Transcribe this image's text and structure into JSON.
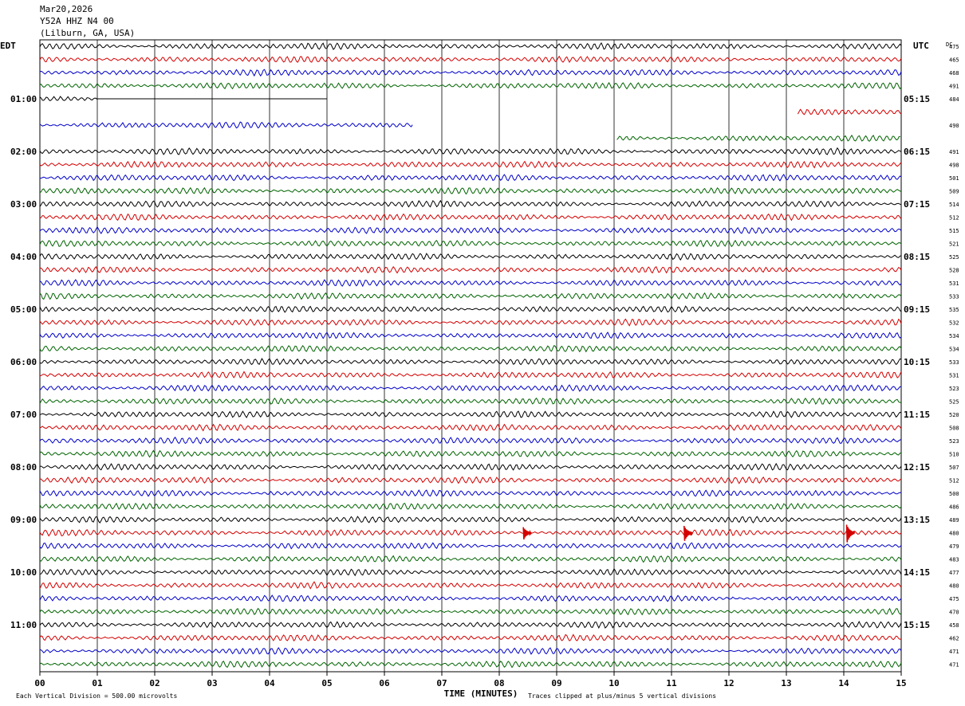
{
  "header": {
    "date": "Mar20,2026",
    "station": "Y52A HHZ N4 00",
    "location": "(Lilburn, GA, USA)"
  },
  "chart_data": {
    "type": "line",
    "title": "",
    "left_axis_title": "EDT",
    "right_axis_title": "UTC",
    "dc_title": "DC",
    "xlabel": "TIME (MINUTES)",
    "x_ticks": [
      "00",
      "01",
      "02",
      "03",
      "04",
      "05",
      "06",
      "07",
      "08",
      "09",
      "10",
      "11",
      "12",
      "13",
      "14",
      "15"
    ],
    "xlim": [
      0,
      15
    ],
    "left_time_labels": [
      "01:00",
      "02:00",
      "03:00",
      "04:00",
      "05:00",
      "06:00",
      "07:00",
      "08:00",
      "09:00",
      "10:00",
      "11:00"
    ],
    "right_time_labels": [
      "05:15",
      "06:15",
      "07:15",
      "08:15",
      "09:15",
      "10:15",
      "11:15",
      "12:15",
      "13:15",
      "14:15",
      "15:15"
    ],
    "rows_per_hour": 4,
    "minutes_per_row": 15,
    "trace_colors": [
      "#000000",
      "#d40000",
      "#0000c8",
      "#006400"
    ],
    "dc_offsets": [
      "475",
      "465",
      "468",
      "491",
      "484",
      "",
      "490",
      "",
      "491",
      "498",
      "501",
      "509",
      "514",
      "512",
      "515",
      "521",
      "525",
      "528",
      "531",
      "533",
      "535",
      "532",
      "534",
      "534",
      "533",
      "531",
      "523",
      "525",
      "520",
      "508",
      "523",
      "510",
      "507",
      "512",
      "500",
      "486",
      "489",
      "480",
      "479",
      "483",
      "477",
      "480",
      "475",
      "470",
      "458",
      "462",
      "471",
      "471"
    ],
    "gaps": [
      {
        "row": 4,
        "start_min": 1.0,
        "end_min": 5.0,
        "type": "flat"
      },
      {
        "row": 4,
        "start_min": 5.0,
        "end_min": 15.0,
        "type": "missing"
      },
      {
        "row": 5,
        "start_min": 0.0,
        "end_min": 13.2,
        "type": "missing"
      },
      {
        "row": 6,
        "start_min": 6.5,
        "end_min": 15.0,
        "type": "missing"
      },
      {
        "row": 7,
        "start_min": 0.0,
        "end_min": 10.05,
        "type": "missing"
      }
    ],
    "events": [
      {
        "row": 37,
        "minute": 8.42,
        "peak": 0.9
      },
      {
        "row": 37,
        "minute": 11.22,
        "peak": 1.1
      },
      {
        "row": 37,
        "minute": 14.05,
        "peak": 1.3
      }
    ],
    "footer": {
      "scale_note": "Each Vertical Division =  500.00 microvolts",
      "clip_note": "Traces clipped at plus/minus 5 vertical divisions"
    }
  }
}
